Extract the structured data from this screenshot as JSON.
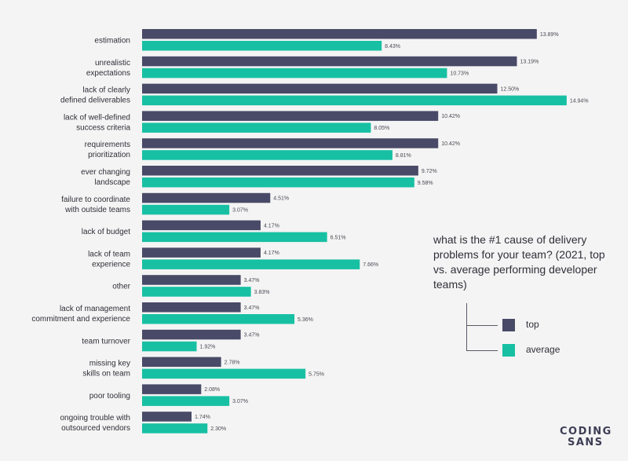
{
  "colors": {
    "top": "#484a67",
    "average": "#17c0a3",
    "text": "#2f2f38"
  },
  "title": "what is the #1 cause of delivery problems for your team? (2021, top vs. average performing developer teams)",
  "legend": {
    "top_label": "top",
    "average_label": "average"
  },
  "logo": {
    "line1": "CODING",
    "line2": "SANS"
  },
  "chart_data": {
    "type": "bar",
    "orientation": "horizontal",
    "title": "what is the #1 cause of delivery problems for your team? (2021, top vs. average performing developer teams)",
    "categories": [
      [
        "estimation"
      ],
      [
        "unrealistic",
        "expectations"
      ],
      [
        "lack of clearly",
        "defined deliverables"
      ],
      [
        "lack of well-defined",
        "success criteria"
      ],
      [
        "requirements",
        "prioritization"
      ],
      [
        "ever changing",
        "landscape"
      ],
      [
        "failure to coordinate",
        "with outside teams"
      ],
      [
        "lack of budget"
      ],
      [
        "lack of team",
        "experience"
      ],
      [
        "other"
      ],
      [
        "lack of management",
        "commitment and experience"
      ],
      [
        "team turnover"
      ],
      [
        "missing key",
        "skills on team"
      ],
      [
        "poor tooling"
      ],
      [
        "ongoing trouble with",
        "outsourced vendors"
      ]
    ],
    "series": [
      {
        "name": "top",
        "values": [
          13.89,
          13.19,
          12.5,
          10.42,
          10.42,
          9.72,
          4.51,
          4.17,
          4.17,
          3.47,
          3.47,
          3.47,
          2.78,
          2.08,
          1.74
        ],
        "labels": [
          "13.89%",
          "13.19%",
          "12.50%",
          "10.42%",
          "10.42%",
          "9.72%",
          "4.51%",
          "4.17%",
          "4.17%",
          "3.47%",
          "3.47%",
          "3.47%",
          "2.78%",
          "2.08%",
          "1.74%"
        ]
      },
      {
        "name": "average",
        "values": [
          8.43,
          10.73,
          14.94,
          8.05,
          8.81,
          9.58,
          3.07,
          6.51,
          7.66,
          3.83,
          5.36,
          1.92,
          5.75,
          3.07,
          2.3
        ],
        "labels": [
          "8.43%",
          "10.73%",
          "14.94%",
          "8.05%",
          "8.81%",
          "9.58%",
          "3.07%",
          "6.51%",
          "7.66%",
          "3.83%",
          "5.36%",
          "1.92%",
          "5.75%",
          "3.07%",
          "2.30%"
        ]
      }
    ],
    "xlim": [
      0,
      15
    ],
    "grid": false,
    "legend_position": "right"
  }
}
